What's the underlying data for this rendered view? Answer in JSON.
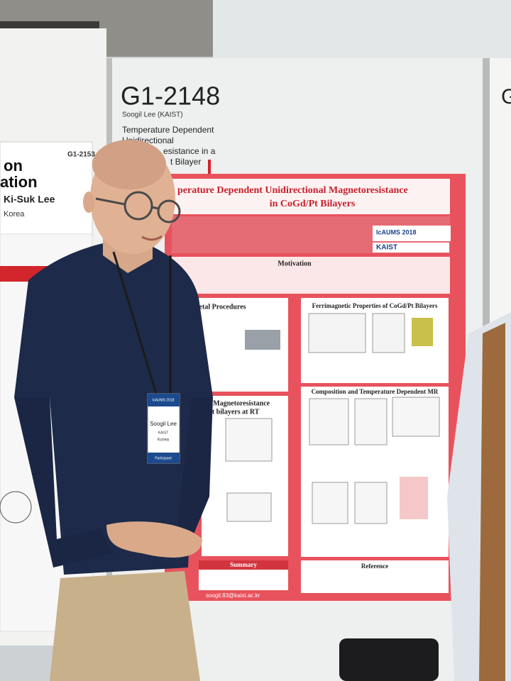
{
  "left_board": {
    "id": "G1-2153",
    "title_lines": [
      "on",
      "ation"
    ],
    "author": "Ki-Suk Lee",
    "affiliation": "Korea"
  },
  "header_board": {
    "id": "G1-2148",
    "author": "Soogil Lee (KAIST)",
    "title_lines": [
      "Temperature Dependent",
      "Unidirectional",
      "esistance in a",
      "t Bilayer"
    ]
  },
  "poster": {
    "title_lines": [
      "perature Dependent Unidirectional Magnetoresistance",
      "in CoGd/Pt Bilayers"
    ],
    "conference_logo": "IcAUMS 2018",
    "institute_logo": "KAIST",
    "sections": {
      "motivation": "Motivation",
      "procedures": "perimetal Procedures",
      "ferrimagnetic": "Ferrimagnetic Properties of CoGd/Pt Bilayers",
      "magnetoresistance": [
        "al Magnetoresistance",
        "/Pt bilayers at RT"
      ],
      "composition": "Composition and Temperature Dependent MR",
      "summary": "Summary",
      "reference": "Reference"
    },
    "email": "soogil.83@kaist.ac.kr"
  },
  "badge": {
    "conference": "IcAUMS 2018",
    "name": "Soogil Lee",
    "institute": "KAIST",
    "country": "Korea",
    "role": "Participant"
  },
  "right_board": {
    "id": "G"
  }
}
